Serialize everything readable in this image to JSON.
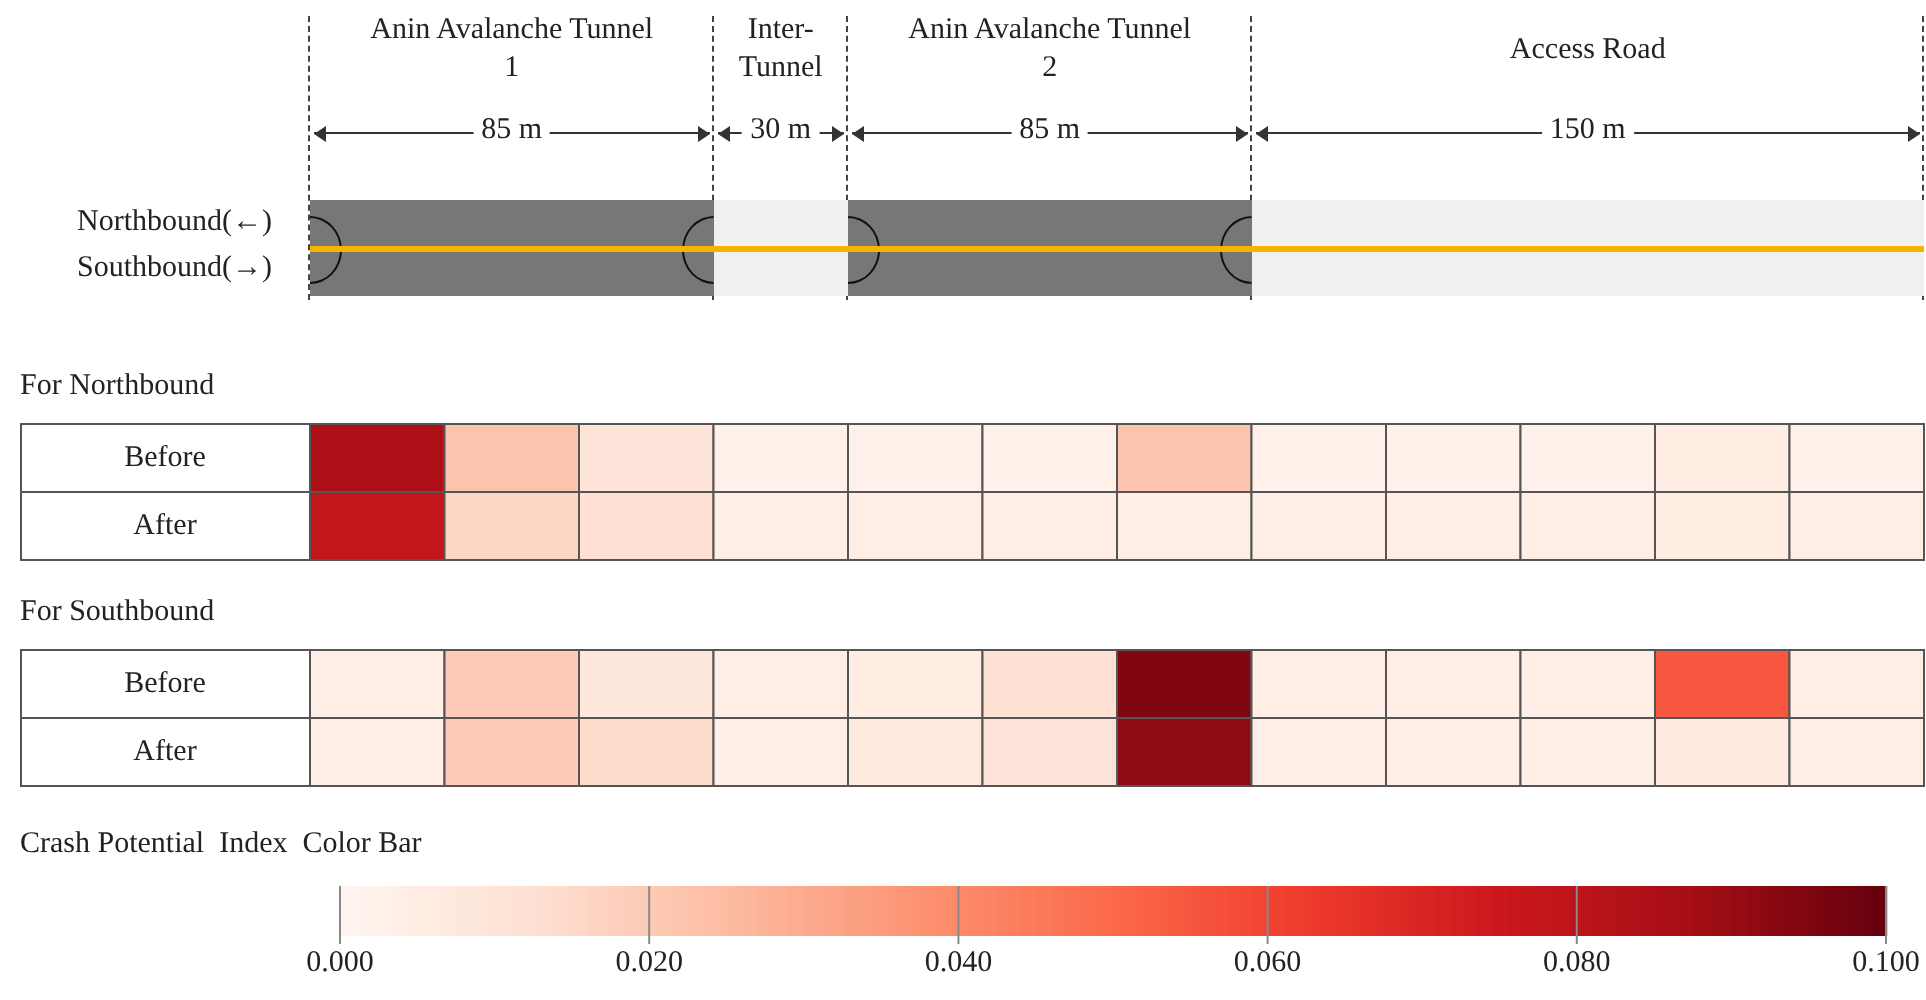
{
  "chart_data": {
    "type": "heatmap",
    "annotations": [
      "Anin Avalanche Tunnel 1",
      "Inter-Tunnel",
      "Anin Avalanche Tunnel 2",
      "Access Road",
      "85 m",
      "30 m",
      "85 m",
      "150 m",
      "Northbound(←)",
      "Southbound(→)",
      "For Northbound",
      "For Southbound"
    ],
    "categories": [
      null,
      null,
      null,
      null,
      null,
      null,
      null,
      null,
      null,
      null,
      null,
      null
    ],
    "y_categories": [
      "Before",
      "After",
      "Before",
      "After"
    ],
    "cells": [
      [
        0.085,
        0.022,
        0.01,
        0.003,
        0.003,
        0.003,
        0.022,
        0.003,
        0.003,
        0.003,
        0.005,
        0.003
      ],
      [
        0.078,
        0.016,
        0.012,
        0.004,
        0.004,
        0.004,
        0.004,
        0.004,
        0.004,
        0.004,
        0.005,
        0.004
      ],
      [
        0.004,
        0.02,
        0.008,
        0.004,
        0.005,
        0.012,
        0.095,
        0.004,
        0.004,
        0.004,
        0.055,
        0.004
      ],
      [
        0.004,
        0.02,
        0.014,
        0.004,
        0.007,
        0.01,
        0.092,
        0.004,
        0.004,
        0.004,
        0.007,
        0.004
      ]
    ],
    "clim": [
      0,
      0.1
    ],
    "clabel": "Crash Potential  Index  Color Bar",
    "cticks": [
      {
        "value": 0,
        "label": "0.000"
      },
      {
        "value": 0.02,
        "label": "0.020"
      },
      {
        "value": 0.04,
        "label": "0.040"
      },
      {
        "value": 0.06,
        "label": "0.060"
      },
      {
        "value": 0.08,
        "label": "0.080"
      },
      {
        "value": 0.1,
        "label": "0.100"
      }
    ]
  }
}
